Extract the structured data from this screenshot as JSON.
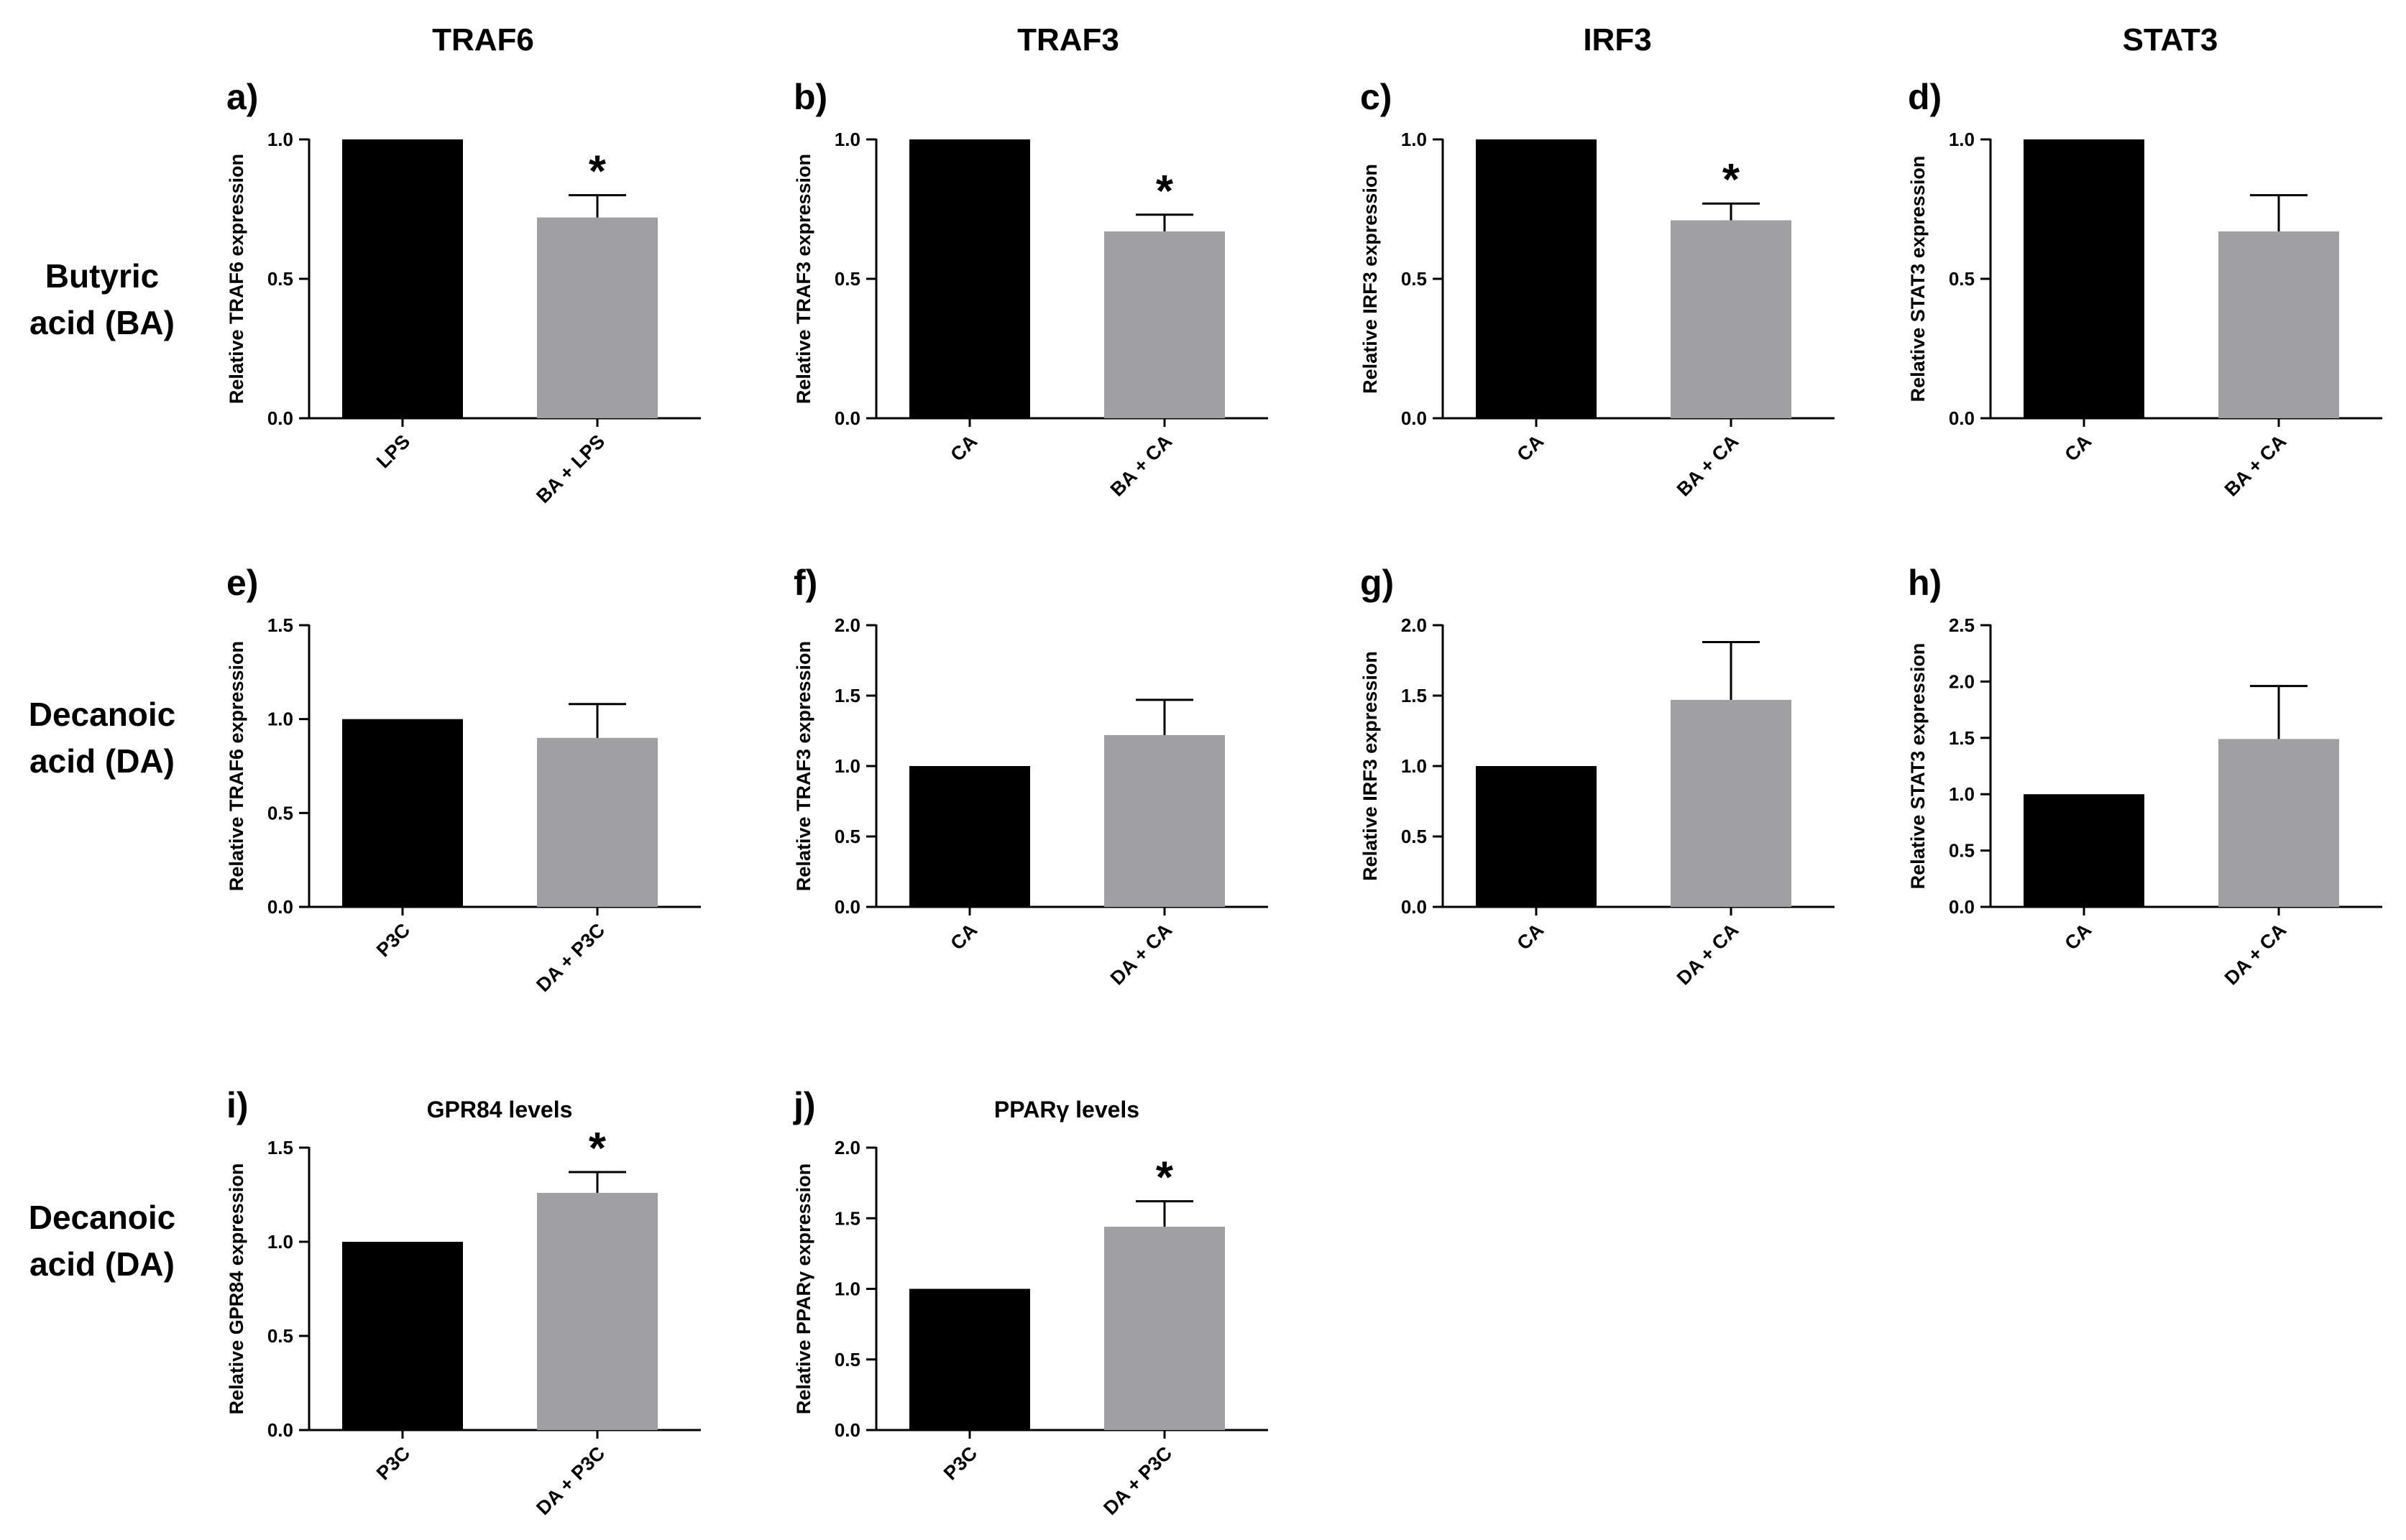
{
  "column_headers": [
    "TRAF6",
    "TRAF3",
    "IRF3",
    "STAT3"
  ],
  "row_labels": [
    [
      "Butyric",
      "acid (BA)"
    ],
    [
      "Decanoic",
      "acid (DA)"
    ],
    [
      "Decanoic",
      "acid (DA)"
    ]
  ],
  "colors": {
    "control_bar": "#000000",
    "treatment_bar": "#a0a0a4",
    "axis": "#000000"
  },
  "chart_data": [
    {
      "panel": "a)",
      "type": "bar",
      "title": "",
      "ylabel": "Relative TRAF6 expression",
      "ylim": [
        0,
        1.0
      ],
      "yticks": [
        "0.0",
        "0.5",
        "1.0"
      ],
      "categories": [
        "LPS",
        "BA + LPS"
      ],
      "values": [
        1.0,
        0.72
      ],
      "errors": [
        0,
        0.08
      ],
      "significance": [
        "",
        "*"
      ]
    },
    {
      "panel": "b)",
      "type": "bar",
      "title": "",
      "ylabel": "Relative TRAF3 expression",
      "ylim": [
        0,
        1.0
      ],
      "yticks": [
        "0.0",
        "0.5",
        "1.0"
      ],
      "categories": [
        "CA",
        "BA + CA"
      ],
      "values": [
        1.0,
        0.67
      ],
      "errors": [
        0,
        0.06
      ],
      "significance": [
        "",
        "*"
      ]
    },
    {
      "panel": "c)",
      "type": "bar",
      "title": "",
      "ylabel": "Relative IRF3 expression",
      "ylim": [
        0,
        1.0
      ],
      "yticks": [
        "0.0",
        "0.5",
        "1.0"
      ],
      "categories": [
        "CA",
        "BA + CA"
      ],
      "values": [
        1.0,
        0.71
      ],
      "errors": [
        0,
        0.06
      ],
      "significance": [
        "",
        "*"
      ]
    },
    {
      "panel": "d)",
      "type": "bar",
      "title": "",
      "ylabel": "Relative STAT3 expression",
      "ylim": [
        0,
        1.0
      ],
      "yticks": [
        "0.0",
        "0.5",
        "1.0"
      ],
      "categories": [
        "CA",
        "BA + CA"
      ],
      "values": [
        1.0,
        0.67
      ],
      "errors": [
        0,
        0.13
      ],
      "significance": [
        "",
        ""
      ]
    },
    {
      "panel": "e)",
      "type": "bar",
      "title": "",
      "ylabel": "Relative TRAF6 expression",
      "ylim": [
        0,
        1.5
      ],
      "yticks": [
        "0.0",
        "0.5",
        "1.0",
        "1.5"
      ],
      "categories": [
        "P3C",
        "DA + P3C"
      ],
      "values": [
        1.0,
        0.9
      ],
      "errors": [
        0,
        0.18
      ],
      "significance": [
        "",
        ""
      ]
    },
    {
      "panel": "f)",
      "type": "bar",
      "title": "",
      "ylabel": "Relative TRAF3 expression",
      "ylim": [
        0,
        2.0
      ],
      "yticks": [
        "0.0",
        "0.5",
        "1.0",
        "1.5",
        "2.0"
      ],
      "categories": [
        "CA",
        "DA + CA"
      ],
      "values": [
        1.0,
        1.22
      ],
      "errors": [
        0,
        0.25
      ],
      "significance": [
        "",
        ""
      ]
    },
    {
      "panel": "g)",
      "type": "bar",
      "title": "",
      "ylabel": "Relative IRF3 expression",
      "ylim": [
        0,
        2.0
      ],
      "yticks": [
        "0.0",
        "0.5",
        "1.0",
        "1.5",
        "2.0"
      ],
      "categories": [
        "CA",
        "DA + CA"
      ],
      "values": [
        1.0,
        1.47
      ],
      "errors": [
        0,
        0.41
      ],
      "significance": [
        "",
        ""
      ]
    },
    {
      "panel": "h)",
      "type": "bar",
      "title": "",
      "ylabel": "Relative STAT3 expression",
      "ylim": [
        0,
        2.5
      ],
      "yticks": [
        "0.0",
        "0.5",
        "1.0",
        "1.5",
        "2.0",
        "2.5"
      ],
      "categories": [
        "CA",
        "DA + CA"
      ],
      "values": [
        1.0,
        1.49
      ],
      "errors": [
        0,
        0.47
      ],
      "significance": [
        "",
        ""
      ]
    },
    {
      "panel": "i)",
      "type": "bar",
      "title": "GPR84 levels",
      "ylabel": "Relative GPR84 expression",
      "ylim": [
        0,
        1.5
      ],
      "yticks": [
        "0.0",
        "0.5",
        "1.0",
        "1.5"
      ],
      "categories": [
        "P3C",
        "DA + P3C"
      ],
      "values": [
        1.0,
        1.26
      ],
      "errors": [
        0,
        0.11
      ],
      "significance": [
        "",
        "*"
      ]
    },
    {
      "panel": "j)",
      "type": "bar",
      "title": "PPARγ levels",
      "ylabel": "Relative PPARγ expression",
      "ylim": [
        0,
        2.0
      ],
      "yticks": [
        "0.0",
        "0.5",
        "1.0",
        "1.5",
        "2.0"
      ],
      "categories": [
        "P3C",
        "DA + P3C"
      ],
      "values": [
        1.0,
        1.44
      ],
      "errors": [
        0,
        0.18
      ],
      "significance": [
        "",
        "*"
      ]
    }
  ]
}
